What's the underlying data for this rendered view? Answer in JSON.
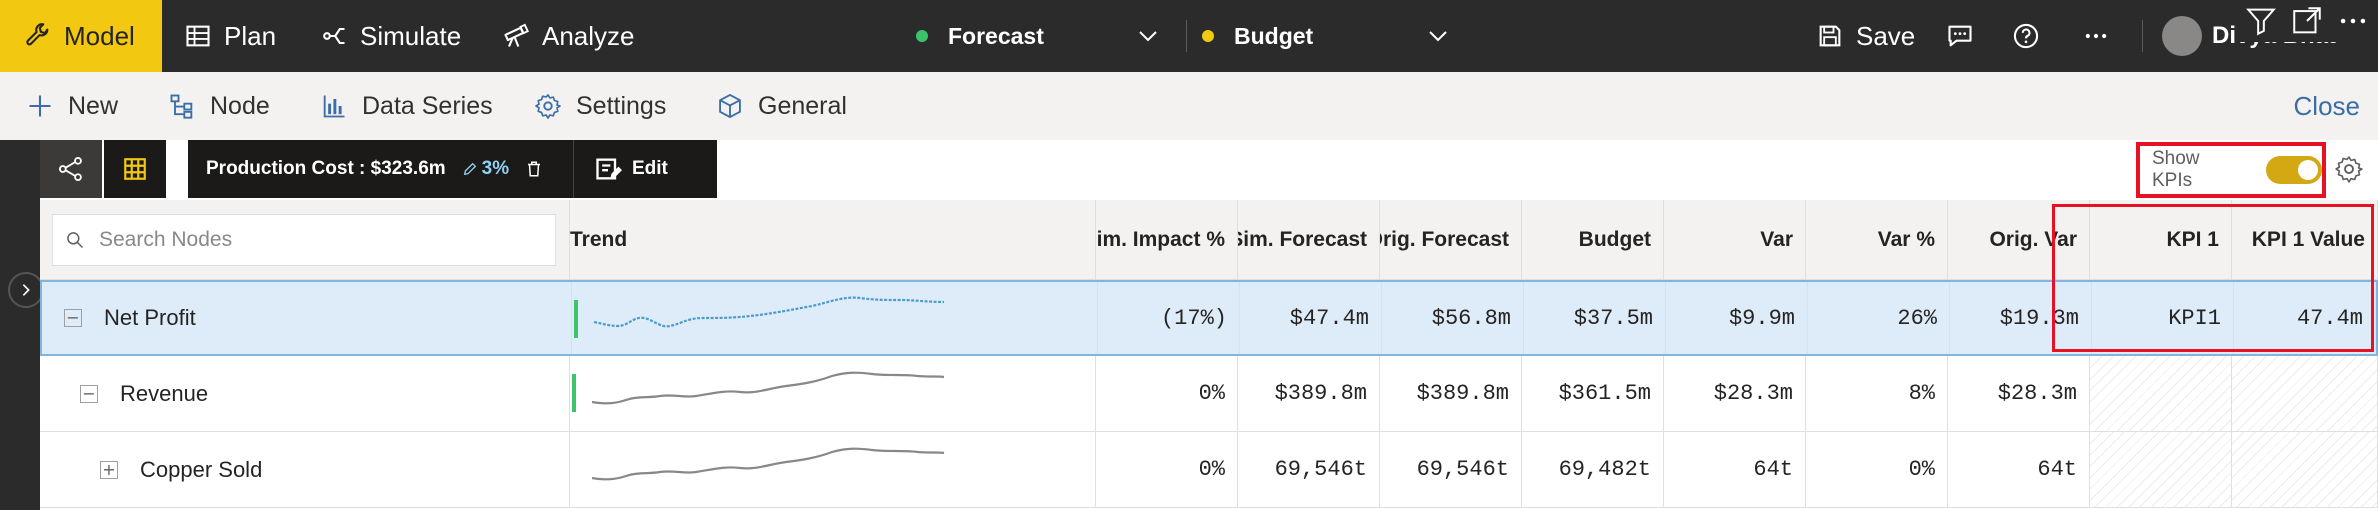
{
  "topbar": {
    "tabs": [
      {
        "label": "Model",
        "icon": "wrench-icon"
      },
      {
        "label": "Plan",
        "icon": "table-icon"
      },
      {
        "label": "Simulate",
        "icon": "branch-icon"
      },
      {
        "label": "Analyze",
        "icon": "telescope-icon"
      }
    ],
    "scenario_a": {
      "label": "Forecast",
      "color": "#3cc46a"
    },
    "scenario_b": {
      "label": "Budget",
      "color": "#f2c811"
    },
    "save_label": "Save",
    "user_name": "Divya Bhat"
  },
  "commandbar": {
    "items": [
      {
        "label": "New",
        "icon": "plus-icon"
      },
      {
        "label": "Node",
        "icon": "node-icon"
      },
      {
        "label": "Data Series",
        "icon": "bar-chart-icon"
      },
      {
        "label": "Settings",
        "icon": "gear-icon"
      },
      {
        "label": "General",
        "icon": "cube-icon"
      }
    ],
    "close_label": "Close"
  },
  "inner_toolbar": {
    "selection_label": "Production Cost : $323.6m",
    "selection_pct": "3%",
    "edit_label": "Edit",
    "show_kpis_label": "Show KPIs",
    "show_kpis_on": true
  },
  "grid": {
    "search_placeholder": "Search Nodes",
    "headers": {
      "trend": "Trend",
      "sim_impact": "Sim. Impact %",
      "sim_forecast": "Sim. Forecast",
      "orig_forecast": "Orig. Forecast",
      "budget": "Budget",
      "var": "Var",
      "var_pct": "Var %",
      "orig_var": "Orig. Var",
      "kpi1": "KPI 1",
      "kpi1_value": "KPI 1 Value"
    },
    "rows": [
      {
        "name": "Net Profit",
        "expander": "−",
        "sim_impact": "(17%)",
        "sim_forecast": "$47.4m",
        "orig_forecast": "$56.8m",
        "budget": "$37.5m",
        "var": "$9.9m",
        "var_pct": "26%",
        "orig_var": "$19.3m",
        "kpi1": "KPI1",
        "kpi1_value": "47.4m"
      },
      {
        "name": "Revenue",
        "expander": "−",
        "sim_impact": "0%",
        "sim_forecast": "$389.8m",
        "orig_forecast": "$389.8m",
        "budget": "$361.5m",
        "var": "$28.3m",
        "var_pct": "8%",
        "orig_var": "$28.3m",
        "kpi1": "",
        "kpi1_value": ""
      },
      {
        "name": "Copper Sold",
        "expander": "+",
        "sim_impact": "0%",
        "sim_forecast": "69,546t",
        "orig_forecast": "69,546t",
        "budget": "69,482t",
        "var": "64t",
        "var_pct": "0%",
        "orig_var": "64t",
        "kpi1": "",
        "kpi1_value": ""
      }
    ]
  }
}
